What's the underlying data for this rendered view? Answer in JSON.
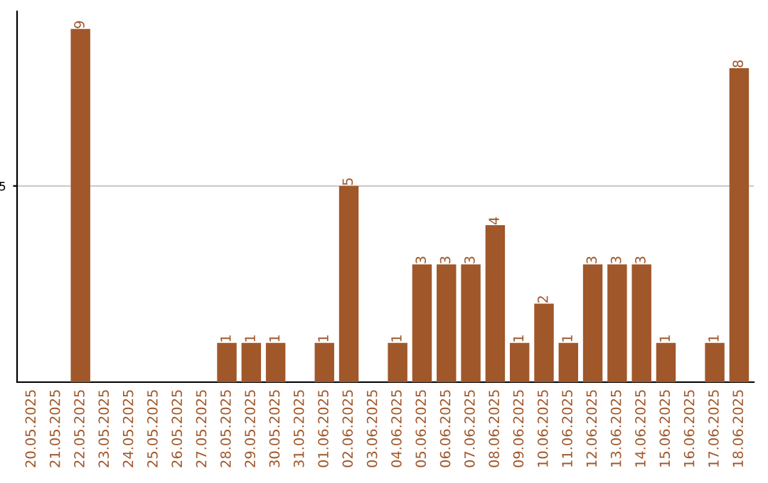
{
  "chart_data": {
    "type": "bar",
    "categories": [
      "20.05.2025",
      "21.05.2025",
      "22.05.2025",
      "23.05.2025",
      "24.05.2025",
      "25.05.2025",
      "26.05.2025",
      "27.05.2025",
      "28.05.2025",
      "29.05.2025",
      "30.05.2025",
      "31.05.2025",
      "01.06.2025",
      "02.06.2025",
      "03.06.2025",
      "04.06.2025",
      "05.06.2025",
      "06.06.2025",
      "07.06.2025",
      "08.06.2025",
      "09.06.2025",
      "10.06.2025",
      "11.06.2025",
      "12.06.2025",
      "13.06.2025",
      "14.06.2025",
      "15.06.2025",
      "16.06.2025",
      "17.06.2025",
      "18.06.2025"
    ],
    "values": [
      0,
      0,
      9,
      0,
      0,
      0,
      0,
      0,
      1,
      1,
      1,
      0,
      1,
      5,
      0,
      1,
      3,
      3,
      3,
      4,
      1,
      2,
      1,
      3,
      3,
      3,
      1,
      0,
      1,
      8
    ],
    "value_labels": [
      null,
      null,
      "9",
      null,
      null,
      null,
      null,
      null,
      "1",
      "1",
      "1",
      null,
      "1",
      "5",
      null,
      "1",
      "3",
      "3",
      "3",
      "4",
      "1",
      "2",
      "1",
      "3",
      "3",
      "3",
      "1",
      null,
      "1",
      "8"
    ],
    "color": "#a0572a",
    "ylim": [
      0,
      9.45
    ],
    "yticks": [
      5
    ],
    "grid": "y"
  }
}
